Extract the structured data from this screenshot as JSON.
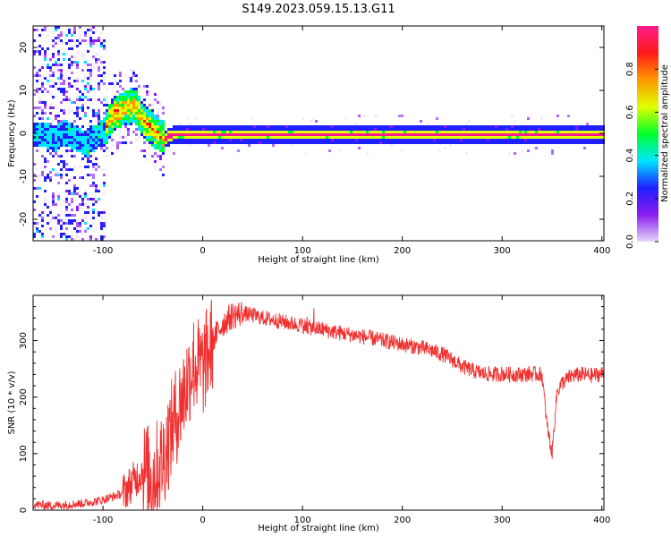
{
  "title": "S149.2023.059.15.13.G11",
  "chart_data": [
    {
      "type": "heatmap",
      "xlabel": "Height of straight line (km)",
      "ylabel": "Frequency (Hz)",
      "xlim": [
        -170,
        402
      ],
      "ylim": [
        -25,
        25
      ],
      "xticks": [
        -100,
        0,
        100,
        200,
        300,
        400
      ],
      "yticks": [
        -20,
        -10,
        0,
        10,
        20
      ],
      "colorbar": {
        "label": "Normalized spectral amplitude",
        "ticks": [
          0.0,
          0.2,
          0.4,
          0.6,
          0.8
        ],
        "range": [
          0,
          1
        ],
        "colors": [
          "#e6d8f8",
          "#8a1cf0",
          "#1f1fff",
          "#00e6ff",
          "#00ff2a",
          "#e0ff00",
          "#ff9900",
          "#ff1a1a",
          "#ff1a8c"
        ]
      },
      "ridge": {
        "x": [
          -160,
          -150,
          -140,
          -130,
          -120,
          -110,
          -100,
          -90,
          -80,
          -70,
          -60,
          -50,
          -40,
          -30,
          0,
          50,
          100,
          200,
          300,
          400
        ],
        "y": [
          0,
          -1,
          0.5,
          -0.5,
          -2,
          -1,
          1,
          5,
          6,
          7,
          3,
          1,
          -1,
          0,
          0,
          0,
          0,
          0,
          0,
          0
        ]
      }
    },
    {
      "type": "line",
      "xlabel": "Height of straight line (km)",
      "ylabel": "SNR (10 * v/v)",
      "xlim": [
        -170,
        402
      ],
      "ylim": [
        0,
        380
      ],
      "xticks": [
        -100,
        0,
        100,
        200,
        300,
        400
      ],
      "yticks": [
        0,
        100,
        200,
        300
      ],
      "color": "#f03030",
      "series": [
        {
          "x": [
            -170,
            -150,
            -120,
            -100,
            -80,
            -70,
            -60,
            -50,
            -40,
            -30,
            -20,
            -10,
            0,
            10,
            20,
            30,
            40,
            50,
            60,
            70,
            80,
            90,
            100,
            110,
            120,
            130,
            140,
            150,
            160,
            170,
            180,
            190,
            200,
            210,
            220,
            230,
            240,
            250,
            260,
            270,
            280,
            290,
            300,
            310,
            320,
            330,
            340,
            345,
            350,
            355,
            360,
            370,
            380,
            390,
            402
          ],
          "y": [
            10,
            8,
            12,
            18,
            30,
            50,
            70,
            60,
            90,
            150,
            200,
            260,
            250,
            300,
            330,
            345,
            348,
            345,
            340,
            337,
            333,
            330,
            327,
            322,
            320,
            316,
            313,
            310,
            307,
            304,
            300,
            297,
            293,
            290,
            287,
            282,
            276,
            266,
            254,
            247,
            242,
            240,
            241,
            240,
            240,
            241,
            240,
            150,
            100,
            210,
            225,
            238,
            240,
            238,
            242
          ]
        }
      ]
    }
  ]
}
